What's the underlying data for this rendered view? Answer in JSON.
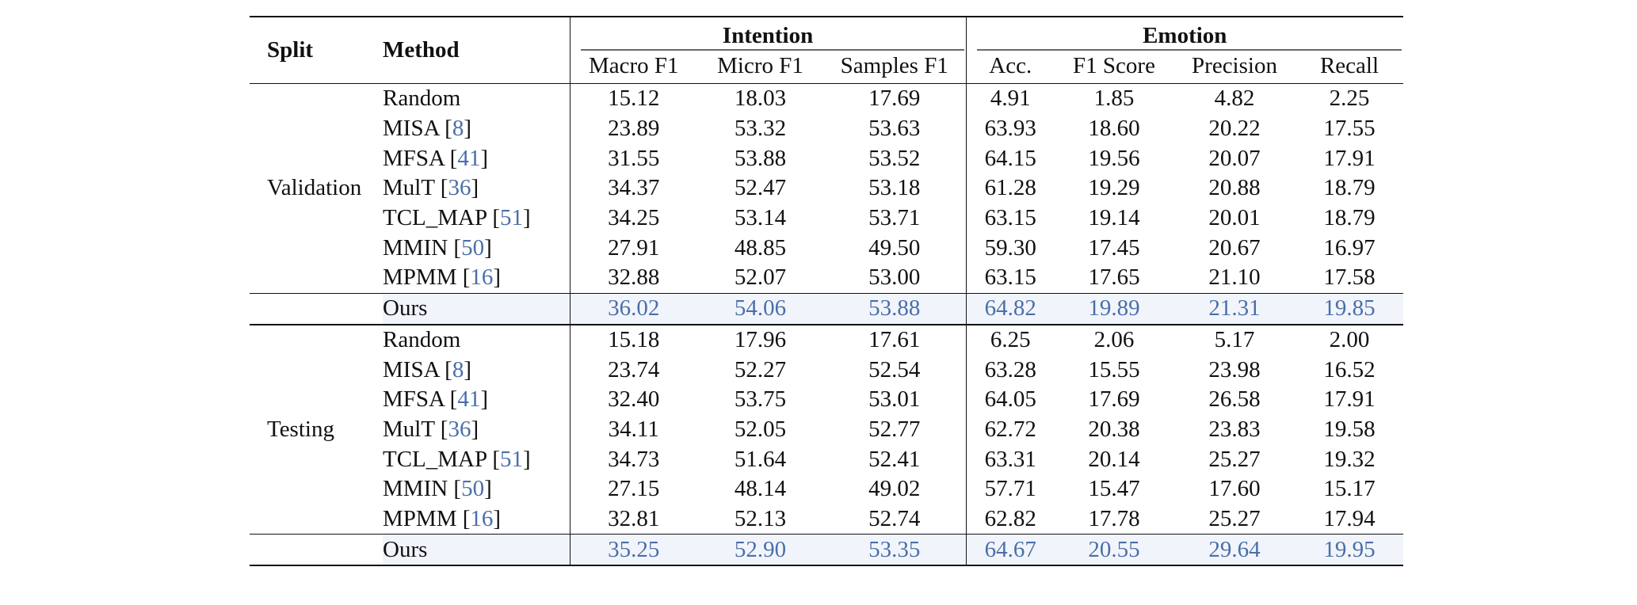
{
  "header": {
    "split": "Split",
    "method": "Method",
    "intention": "Intention",
    "emotion": "Emotion",
    "cols": [
      "Macro F1",
      "Micro F1",
      "Samples F1",
      "Acc.",
      "F1 Score",
      "Precision",
      "Recall"
    ]
  },
  "groups": [
    {
      "split": "Validation",
      "rows": [
        {
          "method": "Random",
          "ref": "",
          "values": [
            "15.12",
            "18.03",
            "17.69",
            "4.91",
            "1.85",
            "4.82",
            "2.25"
          ]
        },
        {
          "method": "MISA",
          "ref": "8",
          "values": [
            "23.89",
            "53.32",
            "53.63",
            "63.93",
            "18.60",
            "20.22",
            "17.55"
          ]
        },
        {
          "method": "MFSA",
          "ref": "41",
          "values": [
            "31.55",
            "53.88",
            "53.52",
            "64.15",
            "19.56",
            "20.07",
            "17.91"
          ]
        },
        {
          "method": "MulT",
          "ref": "36",
          "values": [
            "34.37",
            "52.47",
            "53.18",
            "61.28",
            "19.29",
            "20.88",
            "18.79"
          ]
        },
        {
          "method": "TCL_MAP",
          "ref": "51",
          "values": [
            "34.25",
            "53.14",
            "53.71",
            "63.15",
            "19.14",
            "20.01",
            "18.79"
          ]
        },
        {
          "method": "MMIN",
          "ref": "50",
          "values": [
            "27.91",
            "48.85",
            "49.50",
            "59.30",
            "17.45",
            "20.67",
            "16.97"
          ]
        },
        {
          "method": "MPMM",
          "ref": "16",
          "values": [
            "32.88",
            "52.07",
            "53.00",
            "63.15",
            "17.65",
            "21.10",
            "17.58"
          ]
        }
      ],
      "ours": {
        "method": "Ours",
        "values": [
          "36.02",
          "54.06",
          "53.88",
          "64.82",
          "19.89",
          "21.31",
          "19.85"
        ]
      }
    },
    {
      "split": "Testing",
      "rows": [
        {
          "method": "Random",
          "ref": "",
          "values": [
            "15.18",
            "17.96",
            "17.61",
            "6.25",
            "2.06",
            "5.17",
            "2.00"
          ]
        },
        {
          "method": "MISA",
          "ref": "8",
          "values": [
            "23.74",
            "52.27",
            "52.54",
            "63.28",
            "15.55",
            "23.98",
            "16.52"
          ]
        },
        {
          "method": "MFSA",
          "ref": "41",
          "values": [
            "32.40",
            "53.75",
            "53.01",
            "64.05",
            "17.69",
            "26.58",
            "17.91"
          ]
        },
        {
          "method": "MulT",
          "ref": "36",
          "values": [
            "34.11",
            "52.05",
            "52.77",
            "62.72",
            "20.38",
            "23.83",
            "19.58"
          ]
        },
        {
          "method": "TCL_MAP",
          "ref": "51",
          "values": [
            "34.73",
            "51.64",
            "52.41",
            "63.31",
            "20.14",
            "25.27",
            "19.32"
          ]
        },
        {
          "method": "MMIN",
          "ref": "50",
          "values": [
            "27.15",
            "48.14",
            "49.02",
            "57.71",
            "15.47",
            "17.60",
            "15.17"
          ]
        },
        {
          "method": "MPMM",
          "ref": "16",
          "values": [
            "32.81",
            "52.13",
            "52.74",
            "62.82",
            "17.78",
            "25.27",
            "17.94"
          ]
        }
      ],
      "ours": {
        "method": "Ours",
        "values": [
          "35.25",
          "52.90",
          "53.35",
          "64.67",
          "20.55",
          "29.64",
          "19.95"
        ]
      }
    }
  ]
}
